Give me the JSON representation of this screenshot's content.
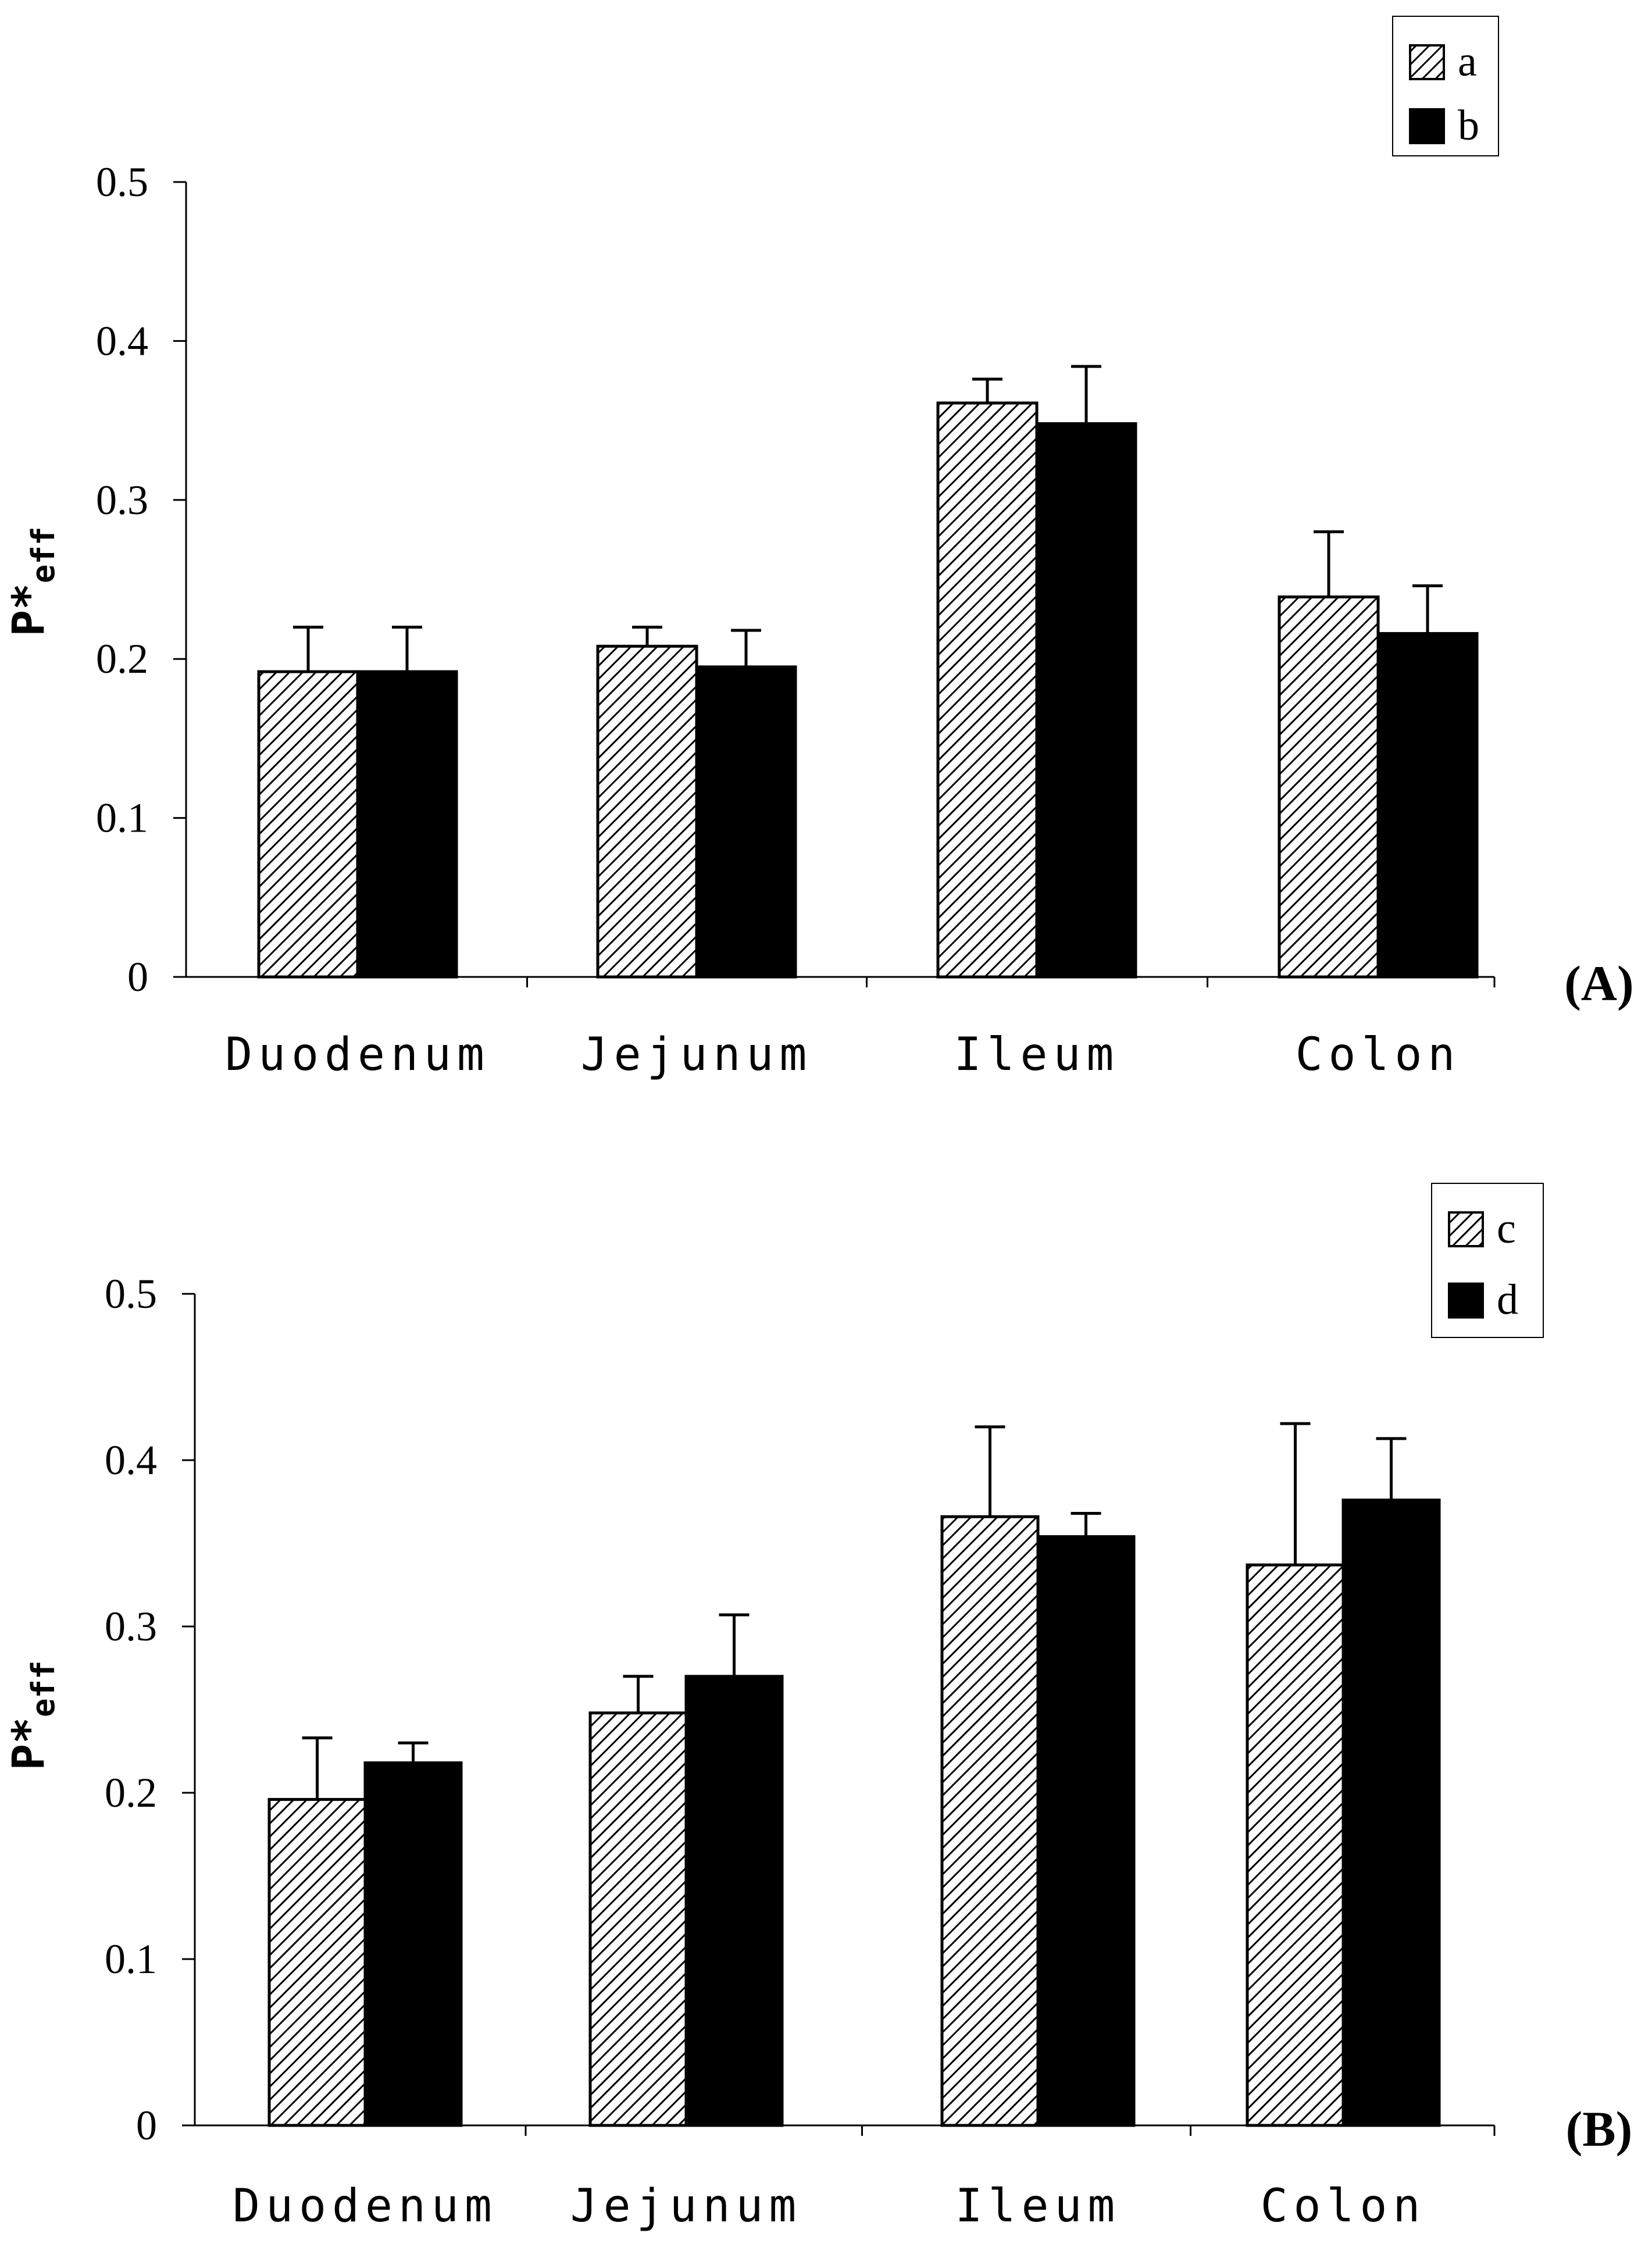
{
  "chart_data": [
    {
      "type": "bar",
      "panel_label": "(A)",
      "ylabel": "P*",
      "ylabel_subscript": "eff",
      "ylim": [
        0,
        0.5
      ],
      "yticks": [
        "0",
        "0.1",
        "0.2",
        "0.3",
        "0.4",
        "0.5"
      ],
      "categories": [
        "Duodenum",
        "Jejunum",
        "Ileum",
        "Colon"
      ],
      "legend_position": "top-right",
      "series": [
        {
          "name": "a",
          "pattern": "hatched",
          "values": [
            0.192,
            0.208,
            0.361,
            0.239
          ],
          "errors": [
            0.028,
            0.012,
            0.015,
            0.041
          ]
        },
        {
          "name": "b",
          "pattern": "solid",
          "color": "#000000",
          "values": [
            0.192,
            0.195,
            0.348,
            0.216
          ],
          "errors": [
            0.028,
            0.023,
            0.036,
            0.03
          ]
        }
      ]
    },
    {
      "type": "bar",
      "panel_label": "(B)",
      "ylabel": "P*",
      "ylabel_subscript": "eff",
      "ylim": [
        0,
        0.5
      ],
      "yticks": [
        "0",
        "0.1",
        "0.2",
        "0.3",
        "0.4",
        "0.5"
      ],
      "categories": [
        "Duodenum",
        "Jejunum",
        "Ileum",
        "Colon"
      ],
      "legend_position": "top-right",
      "series": [
        {
          "name": "c",
          "pattern": "hatched",
          "values": [
            0.196,
            0.248,
            0.366,
            0.337
          ],
          "errors": [
            0.037,
            0.022,
            0.054,
            0.085
          ]
        },
        {
          "name": "d",
          "pattern": "solid",
          "color": "#000000",
          "values": [
            0.218,
            0.27,
            0.354,
            0.376
          ],
          "errors": [
            0.012,
            0.037,
            0.014,
            0.037
          ]
        }
      ]
    }
  ]
}
